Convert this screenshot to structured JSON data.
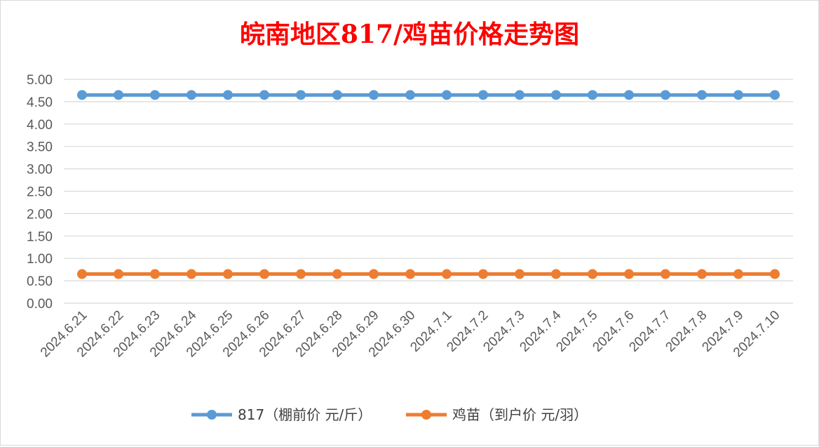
{
  "chart_data": {
    "type": "line",
    "title": "皖南地区817/鸡苗价格走势图",
    "title_color": "#ff0000",
    "xlabel": "",
    "ylabel": "",
    "categories": [
      "2024.6.21",
      "2024.6.22",
      "2024.6.23",
      "2024.6.24",
      "2024.6.25",
      "2024.6.26",
      "2024.6.27",
      "2024.6.28",
      "2024.6.29",
      "2024.6.30",
      "2024.7.1",
      "2024.7.2",
      "2024.7.3",
      "2024.7.4",
      "2024.7.5",
      "2024.7.6",
      "2024.7.7",
      "2024.7.8",
      "2024.7.9",
      "2024.7.10"
    ],
    "ylim": [
      0,
      5
    ],
    "yticks": [
      "0.00",
      "0.50",
      "1.00",
      "1.50",
      "2.00",
      "2.50",
      "3.00",
      "3.50",
      "4.00",
      "4.50",
      "5.00"
    ],
    "grid": true,
    "legend_position": "bottom",
    "series": [
      {
        "name": "817（棚前价 元/斤）",
        "color": "#5b9bd5",
        "values": [
          4.65,
          4.65,
          4.65,
          4.65,
          4.65,
          4.65,
          4.65,
          4.65,
          4.65,
          4.65,
          4.65,
          4.65,
          4.65,
          4.65,
          4.65,
          4.65,
          4.65,
          4.65,
          4.65,
          4.65
        ]
      },
      {
        "name": "鸡苗（到户价 元/羽）",
        "color": "#ed7d31",
        "values": [
          0.65,
          0.65,
          0.65,
          0.65,
          0.65,
          0.65,
          0.65,
          0.65,
          0.65,
          0.65,
          0.65,
          0.65,
          0.65,
          0.65,
          0.65,
          0.65,
          0.65,
          0.65,
          0.65,
          0.65
        ]
      }
    ]
  }
}
